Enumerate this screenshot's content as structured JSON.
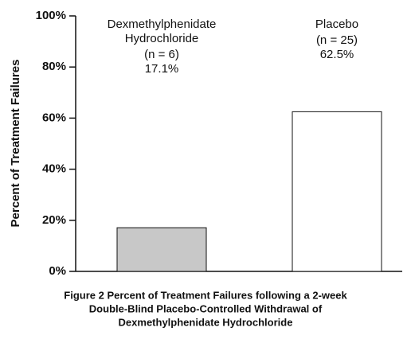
{
  "chart_data": {
    "type": "bar",
    "y_label": "Percent of Treatment Failures",
    "categories": [
      "Dexmethylphenidate Hydrochloride",
      "Placebo"
    ],
    "n_labels": [
      "(n = 6)",
      "(n = 25)"
    ],
    "values": [
      17.1,
      62.5
    ],
    "value_labels": [
      "17.1%",
      "62.5%"
    ],
    "colors": [
      "#c8c8c8",
      "#ffffff"
    ],
    "ylim": [
      0,
      100
    ],
    "yticks": [
      {
        "value": 0,
        "label": "0%"
      },
      {
        "value": 20,
        "label": "20%"
      },
      {
        "value": 40,
        "label": "40%"
      },
      {
        "value": 60,
        "label": "60%"
      },
      {
        "value": 80,
        "label": "80%"
      },
      {
        "value": 100,
        "label": "100%"
      }
    ],
    "caption": [
      "Figure 2 Percent of Treatment Failures following a 2-week",
      "Double-Blind Placebo-Controlled Withdrawal of",
      "Dexmethylphenidate Hydrochloride"
    ]
  }
}
